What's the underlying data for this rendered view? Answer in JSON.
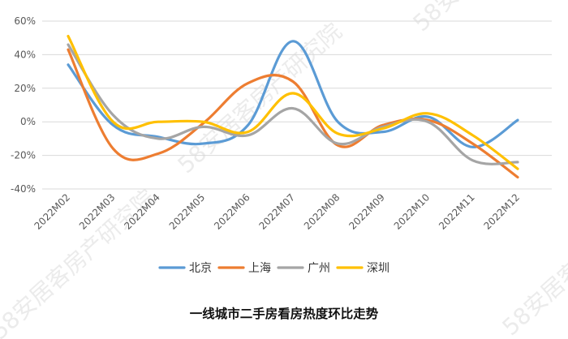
{
  "watermark": "58安居客房产研究院",
  "chart_data": {
    "type": "line",
    "title": "一线城市二手房看房热度环比走势",
    "categories": [
      "2022M02",
      "2022M03",
      "2022M04",
      "2022M05",
      "2022M06",
      "2022M07",
      "2022M08",
      "2022M09",
      "2022M10",
      "2022M11",
      "2022M12"
    ],
    "y_ticks": [
      "60%",
      "40%",
      "20%",
      "0%",
      "-20%",
      "-40%"
    ],
    "ylim": [
      -0.4,
      0.6
    ],
    "ylabel": "",
    "xlabel": "",
    "grid": "horizontal",
    "legend_position": "bottom",
    "series": [
      {
        "name": "北京",
        "color": "#5B9BD5",
        "values": [
          0.34,
          -0.02,
          -0.09,
          -0.13,
          -0.02,
          0.48,
          0.0,
          -0.06,
          0.03,
          -0.15,
          0.01
        ]
      },
      {
        "name": "上海",
        "color": "#ED7D31",
        "values": [
          0.43,
          -0.16,
          -0.19,
          -0.01,
          0.23,
          0.24,
          -0.14,
          -0.02,
          0.01,
          -0.13,
          -0.33
        ]
      },
      {
        "name": "广州",
        "color": "#A5A5A5",
        "values": [
          0.46,
          0.04,
          -0.1,
          -0.03,
          -0.08,
          0.08,
          -0.13,
          -0.03,
          0.0,
          -0.23,
          -0.24
        ]
      },
      {
        "name": "深圳",
        "color": "#FFC000",
        "values": [
          0.51,
          0.0,
          0.0,
          0.0,
          -0.06,
          0.17,
          -0.07,
          -0.04,
          0.05,
          -0.08,
          -0.28
        ]
      }
    ]
  }
}
